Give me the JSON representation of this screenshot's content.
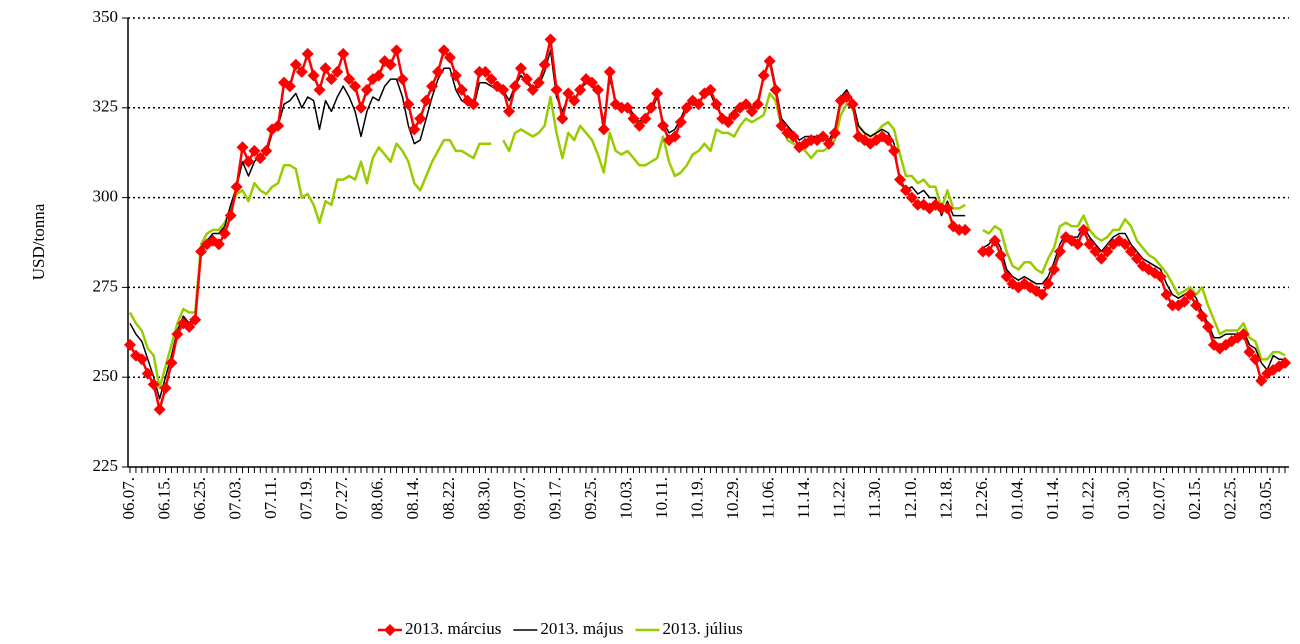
{
  "chart_data": {
    "type": "line",
    "y_label": "USD/tonna",
    "ylim": [
      225,
      350
    ],
    "yticks": [
      225,
      250,
      275,
      300,
      325,
      350
    ],
    "grid": true,
    "categories": [
      "06.07.",
      null,
      null,
      null,
      null,
      null,
      "06.15.",
      null,
      null,
      null,
      null,
      null,
      "06.25.",
      null,
      null,
      null,
      null,
      null,
      "07.03.",
      null,
      null,
      null,
      null,
      null,
      "07.11.",
      null,
      null,
      null,
      null,
      null,
      "07.19.",
      null,
      null,
      null,
      null,
      null,
      "07.27.",
      null,
      null,
      null,
      null,
      null,
      "08.06.",
      null,
      null,
      null,
      null,
      null,
      "08.14.",
      null,
      null,
      null,
      null,
      null,
      "08.22.",
      null,
      null,
      null,
      null,
      null,
      "08.30.",
      null,
      null,
      null,
      null,
      null,
      "09.07.",
      null,
      null,
      null,
      null,
      null,
      "09.17.",
      null,
      null,
      null,
      null,
      null,
      "09.25.",
      null,
      null,
      null,
      null,
      null,
      "10.03.",
      null,
      null,
      null,
      null,
      null,
      "10.11.",
      null,
      null,
      null,
      null,
      null,
      "10.19.",
      null,
      null,
      null,
      null,
      null,
      "10.29.",
      null,
      null,
      null,
      null,
      null,
      "11.06.",
      null,
      null,
      null,
      null,
      null,
      "11.14.",
      null,
      null,
      null,
      null,
      null,
      "11.22.",
      null,
      null,
      null,
      null,
      null,
      "11.30.",
      null,
      null,
      null,
      null,
      null,
      "12.10.",
      null,
      null,
      null,
      null,
      null,
      "12.18.",
      null,
      null,
      null,
      null,
      null,
      "12.26.",
      null,
      null,
      null,
      null,
      null,
      "01.04.",
      null,
      null,
      null,
      null,
      null,
      "01.14.",
      null,
      null,
      null,
      null,
      null,
      "01.22.",
      null,
      null,
      null,
      null,
      null,
      "01.30.",
      null,
      null,
      null,
      null,
      null,
      "02.07.",
      null,
      null,
      null,
      null,
      null,
      "02.15.",
      null,
      null,
      null,
      null,
      null,
      "02.25.",
      null,
      null,
      null,
      null,
      null,
      "03.05.",
      null,
      null,
      null
    ],
    "series": [
      {
        "name": "2013. március",
        "color": "#ff0000",
        "marker": "diamond",
        "values": [
          259,
          256,
          255,
          251,
          248,
          241,
          247,
          254,
          262,
          265,
          264,
          266,
          285,
          287,
          288,
          287,
          290,
          295,
          303,
          314,
          310,
          313,
          311,
          313,
          319,
          320,
          332,
          331,
          337,
          335,
          340,
          334,
          330,
          336,
          333,
          335,
          340,
          333,
          331,
          325,
          330,
          333,
          334,
          338,
          337,
          341,
          333,
          326,
          319,
          322,
          327,
          331,
          335,
          341,
          339,
          334,
          330,
          327,
          326,
          335,
          335,
          333,
          331,
          330,
          324,
          331,
          336,
          333,
          330,
          332,
          337,
          344,
          330,
          322,
          329,
          327,
          330,
          333,
          332,
          330,
          319,
          335,
          326,
          325,
          325,
          322,
          320,
          322,
          325,
          329,
          320,
          316,
          317,
          321,
          325,
          327,
          326,
          329,
          330,
          326,
          322,
          321,
          323,
          325,
          326,
          324,
          326,
          334,
          338,
          330,
          320,
          318,
          317,
          314,
          315,
          316,
          316,
          317,
          315,
          318,
          327,
          328,
          326,
          317,
          316,
          315,
          316,
          317,
          316,
          313,
          305,
          302,
          300,
          298,
          298,
          297,
          298,
          297,
          297,
          292,
          291,
          291,
          null,
          null,
          285,
          285,
          288,
          284,
          278,
          276,
          275,
          276,
          275,
          274,
          273,
          276,
          280,
          285,
          289,
          288,
          287,
          291,
          287,
          285,
          283,
          285,
          287,
          288,
          287,
          285,
          283,
          281,
          280,
          279,
          278,
          273,
          270,
          270,
          271,
          273,
          270,
          267,
          264,
          259,
          258,
          259,
          260,
          261,
          262,
          257,
          255,
          249,
          251,
          252,
          253,
          254
        ]
      },
      {
        "name": "2013. május",
        "color": "#000000",
        "values": [
          265,
          262,
          260,
          255,
          250,
          244,
          250,
          256,
          263,
          267,
          265,
          267,
          286,
          288,
          290,
          290,
          292,
          298,
          303,
          310,
          306,
          310,
          312,
          312,
          318,
          320,
          326,
          327,
          329,
          325,
          328,
          327,
          319,
          327,
          324,
          328,
          331,
          328,
          324,
          317,
          324,
          328,
          327,
          331,
          333,
          333,
          328,
          320,
          315,
          316,
          322,
          328,
          333,
          336,
          336,
          330,
          327,
          326,
          325,
          332,
          332,
          331,
          330,
          330,
          327,
          331,
          334,
          332,
          330,
          331,
          335,
          341,
          328,
          324,
          328,
          327,
          330,
          332,
          331,
          329,
          321,
          333,
          327,
          325,
          326,
          323,
          321,
          323,
          324,
          328,
          321,
          318,
          319,
          322,
          326,
          327,
          327,
          328,
          329,
          325,
          323,
          322,
          324,
          326,
          327,
          325,
          327,
          334,
          339,
          331,
          322,
          320,
          318,
          316,
          317,
          317,
          317,
          318,
          316,
          319,
          328,
          330,
          327,
          320,
          318,
          317,
          318,
          319,
          318,
          315,
          304,
          302,
          303,
          301,
          302,
          300,
          300,
          295,
          299,
          295,
          295,
          295,
          null,
          null,
          286,
          287,
          289,
          286,
          280,
          278,
          277,
          278,
          277,
          276,
          276,
          278,
          282,
          287,
          290,
          289,
          289,
          292,
          289,
          287,
          285,
          287,
          289,
          290,
          290,
          287,
          285,
          283,
          282,
          281,
          280,
          276,
          273,
          272,
          273,
          274,
          272,
          268,
          265,
          261,
          261,
          262,
          262,
          262,
          263,
          259,
          258,
          254,
          252,
          256,
          255,
          255
        ]
      },
      {
        "name": "2013. július",
        "color": "#99cc00",
        "values": [
          268,
          265,
          263,
          258,
          256,
          247,
          253,
          259,
          265,
          269,
          268,
          268,
          287,
          290,
          291,
          291,
          293,
          297,
          301,
          302,
          299,
          304,
          302,
          301,
          303,
          304,
          309,
          309,
          308,
          300,
          301,
          298,
          293,
          299,
          298,
          305,
          305,
          306,
          305,
          310,
          304,
          311,
          314,
          312,
          310,
          315,
          313,
          310,
          304,
          302,
          306,
          310,
          313,
          316,
          316,
          313,
          313,
          312,
          311,
          315,
          315,
          315,
          null,
          316,
          313,
          318,
          319,
          318,
          317,
          318,
          320,
          328,
          318,
          311,
          318,
          316,
          320,
          318,
          316,
          312,
          307,
          318,
          313,
          312,
          313,
          311,
          309,
          309,
          310,
          311,
          317,
          310,
          306,
          307,
          309,
          312,
          313,
          315,
          313,
          319,
          318,
          318,
          317,
          320,
          322,
          321,
          322,
          323,
          329,
          327,
          320,
          316,
          315,
          314,
          313,
          311,
          313,
          313,
          314,
          316,
          323,
          326,
          325,
          320,
          318,
          317,
          318,
          320,
          321,
          319,
          312,
          306,
          306,
          304,
          305,
          303,
          303,
          297,
          302,
          297,
          297,
          298,
          null,
          null,
          291,
          290,
          292,
          291,
          285,
          281,
          280,
          282,
          282,
          280,
          279,
          283,
          286,
          292,
          293,
          292,
          292,
          295,
          291,
          289,
          288,
          289,
          291,
          291,
          294,
          292,
          288,
          286,
          284,
          283,
          281,
          279,
          276,
          273,
          274,
          275,
          273,
          275,
          270,
          266,
          262,
          263,
          263,
          263,
          265,
          261,
          260,
          255,
          255,
          257,
          257,
          256
        ]
      }
    ]
  }
}
